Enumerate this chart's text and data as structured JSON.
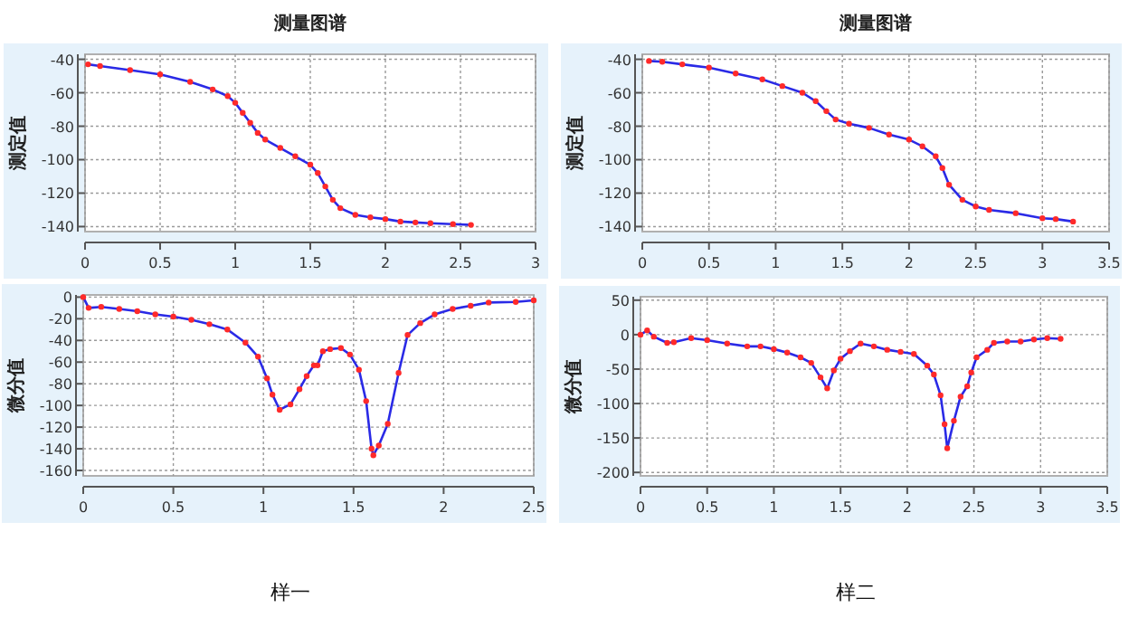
{
  "chart_data": [
    {
      "type": "line",
      "title": "测量图谱",
      "ylabel": "测定值",
      "xlim": [
        0,
        3
      ],
      "xticks": [
        0,
        0.5,
        1,
        1.5,
        2,
        2.5,
        3
      ],
      "ylim": [
        -143,
        -37
      ],
      "yticks": [
        -40,
        -60,
        -80,
        -100,
        -120,
        -140
      ],
      "grid": true,
      "marker": "circle",
      "line_style": "solid",
      "series": [
        {
          "color": "#2a2ae6",
          "x": [
            0.02,
            0.1,
            0.3,
            0.5,
            0.7,
            0.85,
            0.95,
            1.0,
            1.05,
            1.1,
            1.15,
            1.2,
            1.3,
            1.4,
            1.5,
            1.55,
            1.6,
            1.65,
            1.7,
            1.8,
            1.9,
            2.0,
            2.1,
            2.2,
            2.3,
            2.45,
            2.57
          ],
          "values": [
            -43,
            -44,
            -46.5,
            -49,
            -53.5,
            -58,
            -62,
            -66,
            -72,
            -78,
            -84,
            -88,
            -93,
            -98,
            -103,
            -108,
            -116,
            -124,
            -129,
            -133,
            -134.5,
            -135.5,
            -137,
            -137.5,
            -138,
            -138.5,
            -139
          ]
        }
      ]
    },
    {
      "type": "line",
      "ylabel": "微分值",
      "xlim": [
        0,
        2.5
      ],
      "xticks": [
        0,
        0.5,
        1,
        1.5,
        2,
        2.5
      ],
      "ylim": [
        -165,
        2
      ],
      "yticks": [
        0,
        -20,
        -40,
        -60,
        -80,
        -100,
        -120,
        -140,
        -160
      ],
      "grid": true,
      "marker": "circle",
      "line_style": "solid",
      "annotations": [
        "样一"
      ],
      "series": [
        {
          "color": "#2a2ae6",
          "x": [
            0,
            0.03,
            0.1,
            0.2,
            0.3,
            0.4,
            0.5,
            0.6,
            0.7,
            0.8,
            0.9,
            0.97,
            1.02,
            1.05,
            1.09,
            1.15,
            1.2,
            1.24,
            1.28,
            1.3,
            1.33,
            1.37,
            1.43,
            1.48,
            1.53,
            1.57,
            1.6,
            1.61,
            1.64,
            1.69,
            1.75,
            1.8,
            1.87,
            1.95,
            2.05,
            2.15,
            2.25,
            2.4,
            2.5
          ],
          "values": [
            0,
            -10,
            -9,
            -11,
            -13,
            -16,
            -18,
            -21,
            -25,
            -30,
            -42,
            -55,
            -75,
            -90,
            -104,
            -99,
            -85,
            -73,
            -63,
            -63,
            -50,
            -48,
            -47,
            -53,
            -67,
            -96,
            -140,
            -146,
            -137,
            -117,
            -70,
            -35,
            -24,
            -16,
            -11,
            -8,
            -5,
            -4.5,
            -3
          ]
        }
      ]
    },
    {
      "type": "line",
      "title": "测量图谱",
      "ylabel": "测定值",
      "xlim": [
        0,
        3.5
      ],
      "xticks": [
        0,
        0.5,
        1,
        1.5,
        2,
        2.5,
        3,
        3.5
      ],
      "ylim": [
        -143,
        -37
      ],
      "yticks": [
        -40,
        -60,
        -80,
        -100,
        -120,
        -140
      ],
      "grid": true,
      "marker": "circle",
      "line_style": "solid",
      "series": [
        {
          "color": "#2a2ae6",
          "x": [
            0.05,
            0.15,
            0.3,
            0.5,
            0.7,
            0.9,
            1.05,
            1.2,
            1.3,
            1.38,
            1.45,
            1.55,
            1.7,
            1.85,
            2.0,
            2.1,
            2.2,
            2.25,
            2.3,
            2.4,
            2.5,
            2.6,
            2.8,
            3.0,
            3.1,
            3.23
          ],
          "values": [
            -41,
            -41.5,
            -43,
            -45,
            -48.5,
            -52,
            -56,
            -60,
            -65,
            -71,
            -76,
            -78.5,
            -81,
            -85,
            -88,
            -92,
            -98,
            -105,
            -115,
            -124,
            -128,
            -130,
            -132,
            -135,
            -135.5,
            -137
          ]
        }
      ]
    },
    {
      "type": "line",
      "ylabel": "微分值",
      "xlim": [
        0,
        3.5
      ],
      "xticks": [
        0,
        0.5,
        1,
        1.5,
        2,
        2.5,
        3,
        3.5
      ],
      "ylim": [
        -205,
        55
      ],
      "yticks": [
        50,
        0,
        -50,
        -100,
        -150,
        -200
      ],
      "grid": true,
      "marker": "circle",
      "line_style": "solid",
      "annotations": [
        "样二"
      ],
      "series": [
        {
          "color": "#2a2ae6",
          "x": [
            0,
            0.05,
            0.1,
            0.2,
            0.25,
            0.38,
            0.5,
            0.65,
            0.8,
            0.9,
            1.0,
            1.1,
            1.2,
            1.28,
            1.35,
            1.4,
            1.45,
            1.5,
            1.57,
            1.65,
            1.75,
            1.85,
            1.95,
            2.05,
            2.15,
            2.2,
            2.25,
            2.28,
            2.3,
            2.35,
            2.4,
            2.45,
            2.48,
            2.52,
            2.6,
            2.65,
            2.75,
            2.85,
            2.95,
            3.05,
            3.15
          ],
          "values": [
            0,
            6,
            -3,
            -12,
            -11,
            -5,
            -8,
            -13,
            -17,
            -17,
            -21,
            -26,
            -33,
            -41,
            -62,
            -78,
            -52,
            -35,
            -24,
            -13,
            -17,
            -22,
            -25,
            -28,
            -45,
            -58,
            -88,
            -130,
            -165,
            -125,
            -90,
            -75,
            -55,
            -33,
            -22,
            -12,
            -10,
            -10,
            -7,
            -5,
            -6
          ]
        }
      ]
    }
  ]
}
